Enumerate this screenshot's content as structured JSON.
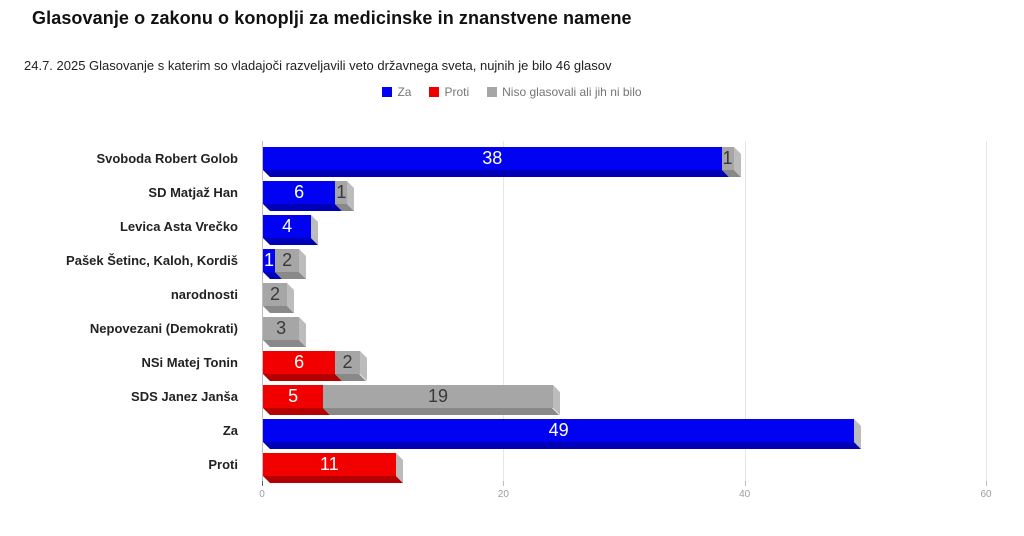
{
  "title": "Glasovanje o zakonu o konoplji za medicinske in znanstvene namene",
  "subtitle": "24.7. 2025 Glasovanje s katerim so vladajoči razveljavili veto državnega sveta, nujnih je bilo 46 glasov",
  "legend": {
    "position": "top-center",
    "items": [
      {
        "label": "Za",
        "color": "#0202f2"
      },
      {
        "label": "Proti",
        "color": "#f20000"
      },
      {
        "label": "Niso glasovali ali jih ni bilo",
        "color": "#a6a6a6"
      }
    ]
  },
  "chart_data": {
    "type": "bar",
    "orientation": "horizontal",
    "stacked": true,
    "grid": true,
    "title": "Glasovanje o zakonu o konoplji za medicinske in znanstvene namene",
    "xlabel": "",
    "ylabel": "",
    "xlim": [
      0,
      60
    ],
    "xticks": [
      0,
      20,
      40,
      60
    ],
    "legend_position": "top-center",
    "categories": [
      "Svoboda Robert Golob",
      "SD Matjaž Han",
      "Levica Asta Vrečko",
      "Pašek Šetinc, Kaloh, Kordiš",
      "narodnosti",
      "Nepovezani (Demokrati)",
      "NSi Matej Tonin",
      "SDS Janez Janša",
      "Za",
      "Proti"
    ],
    "series": [
      {
        "name": "Za",
        "color": "#0202f2",
        "dark_color": "#0000b6",
        "label_color": "#ffffff",
        "values": [
          38,
          6,
          4,
          1,
          0,
          0,
          0,
          0,
          49,
          0
        ]
      },
      {
        "name": "Proti",
        "color": "#f20000",
        "dark_color": "#b40000",
        "label_color": "#ffffff",
        "values": [
          0,
          0,
          0,
          0,
          0,
          0,
          6,
          5,
          0,
          11
        ]
      },
      {
        "name": "Niso glasovali ali jih ni bilo",
        "color": "#a6a6a6",
        "dark_color": "#898989",
        "label_color": "#3a3a3a",
        "values": [
          1,
          1,
          0,
          2,
          2,
          3,
          2,
          19,
          0,
          0
        ]
      }
    ],
    "side_face_color": "#bcbcbc",
    "axis_line_color": "#bdbdbd",
    "gridline_color": "#e6e6e6",
    "zero_tick_color": "#616161",
    "tick_label_color": "#9e9e9e"
  }
}
